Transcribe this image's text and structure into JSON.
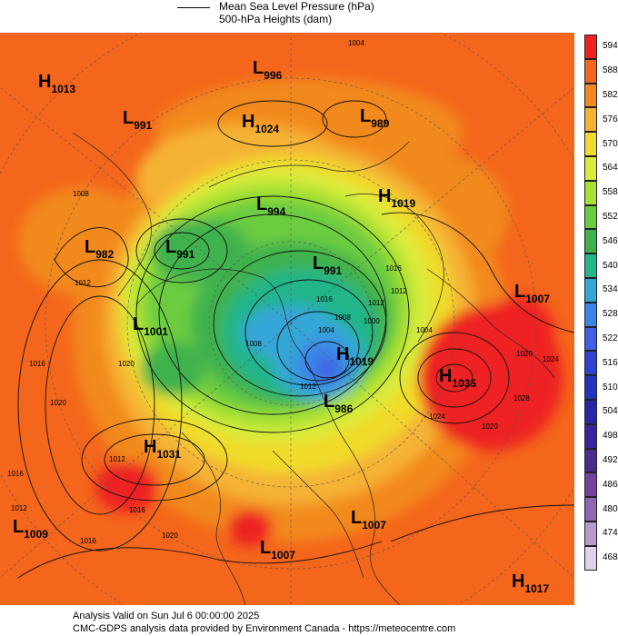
{
  "legend": {
    "line1": "Mean Sea Level Pressure (hPa)",
    "line2": "500-hPa Heights (dam)"
  },
  "colorbar": {
    "labels": [
      "594",
      "588",
      "582",
      "576",
      "570",
      "564",
      "558",
      "552",
      "546",
      "540",
      "534",
      "528",
      "522",
      "516",
      "510",
      "504",
      "498",
      "492",
      "486",
      "480",
      "474",
      "468"
    ],
    "colors": [
      "#ee2222",
      "#f4661c",
      "#f2891f",
      "#f5b334",
      "#f0db2c",
      "#d8ec3c",
      "#a6e033",
      "#6ccc40",
      "#3fb24d",
      "#24b58a",
      "#35a6d8",
      "#3a86e6",
      "#3f5fe4",
      "#2f44d0",
      "#2134bd",
      "#2828a6",
      "#3b23a0",
      "#4c2b8e",
      "#73429c",
      "#8f66b2",
      "#b79bcc",
      "#dfd2ea"
    ]
  },
  "systems": [
    {
      "t": "H",
      "v": "1013"
    },
    {
      "t": "L",
      "v": "996"
    },
    {
      "t": "L",
      "v": "991"
    },
    {
      "t": "H",
      "v": "1024"
    },
    {
      "t": "L",
      "v": "989"
    },
    {
      "t": "H",
      "v": "1019"
    },
    {
      "t": "L",
      "v": "994"
    },
    {
      "t": "L",
      "v": "991"
    },
    {
      "t": "L",
      "v": "982"
    },
    {
      "t": "L",
      "v": "991"
    },
    {
      "t": "L",
      "v": "1001"
    },
    {
      "t": "L",
      "v": "1007"
    },
    {
      "t": "H",
      "v": "1019"
    },
    {
      "t": "H",
      "v": "1035"
    },
    {
      "t": "L",
      "v": "986"
    },
    {
      "t": "H",
      "v": "1031"
    },
    {
      "t": "L",
      "v": "1009"
    },
    {
      "t": "L",
      "v": "1007"
    },
    {
      "t": "L",
      "v": "1007"
    },
    {
      "t": "H",
      "v": "1017"
    }
  ],
  "contour_labels": [
    "1004",
    "1008",
    "1012",
    "1016",
    "1020",
    "1012",
    "1016",
    "1020",
    "1016",
    "1020",
    "1012",
    "1016",
    "1020",
    "1024",
    "1028",
    "1020",
    "1024",
    "1016",
    "1012",
    "1016",
    "1012",
    "1008",
    "1000",
    "1004",
    "1004",
    "1008",
    "1012"
  ],
  "footer": {
    "line1": "Analysis Valid on Sun Jul  6 00:00:00 2025",
    "line2": "CMC-GDPS analysis data provided by Environment Canada - https://meteocentre.com"
  }
}
